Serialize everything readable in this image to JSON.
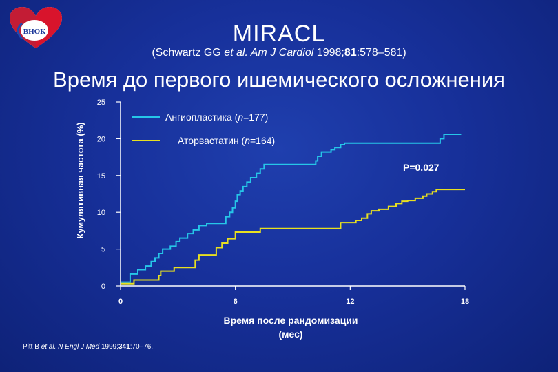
{
  "header": {
    "logo_text": "ВНОК",
    "title": "MIRACL",
    "citation": {
      "author": "(Schwartz GG ",
      "etal": "et al.",
      "journal": " Am J Cardiol",
      "year": " 1998;",
      "volume": "81",
      "pages": ":578–581)"
    },
    "subtitle": "Время до первого ишемического осложнения"
  },
  "footnote": {
    "author": "Pitt B ",
    "etal": "et al.",
    "journal": " N Engl J Med",
    "year": " 1999;",
    "volume": "341",
    "pages": ":70–76."
  },
  "colors": {
    "series_angioplasty": "#26c6e8",
    "series_atorvastatin": "#e8e020",
    "axis": "#ffffff"
  },
  "chart_data": {
    "type": "line",
    "step": true,
    "xlabel": "Время после рандомизации (мес)",
    "ylabel": "Кумулятивная частота (%)",
    "xlim": [
      0,
      18
    ],
    "ylim": [
      0,
      25
    ],
    "xticks": [
      0,
      6,
      12,
      18
    ],
    "yticks": [
      0,
      5,
      10,
      15,
      20,
      25
    ],
    "annotation": "P=0.027",
    "legend": "top-left",
    "series": [
      {
        "name": "Ангиопластика (n=177)",
        "name_parts": [
          "Ангиопластика (",
          "n",
          "=177)"
        ],
        "color": "#26c6e8",
        "x": [
          0,
          0.5,
          0.9,
          1.3,
          1.6,
          1.8,
          2.0,
          2.2,
          2.6,
          2.9,
          3.1,
          3.5,
          3.8,
          4.1,
          4.5,
          5.5,
          5.7,
          5.85,
          6.0,
          6.1,
          6.25,
          6.4,
          6.6,
          6.8,
          7.1,
          7.3,
          7.5,
          10.2,
          10.3,
          10.5,
          11.0,
          11.2,
          11.5,
          11.6,
          11.7,
          11.8,
          12.3,
          14.3,
          16.7,
          16.9,
          17.1,
          17.8
        ],
        "y": [
          0.5,
          1.6,
          2.2,
          2.7,
          3.3,
          3.8,
          4.4,
          5.0,
          5.4,
          6.0,
          6.5,
          7.1,
          7.6,
          8.2,
          8.5,
          9.4,
          10.0,
          10.6,
          11.5,
          12.4,
          12.9,
          13.5,
          14.1,
          14.7,
          15.3,
          15.9,
          16.5,
          17.0,
          17.6,
          18.2,
          18.5,
          18.8,
          19.2,
          19.2,
          19.4,
          19.4,
          19.4,
          19.4,
          20.0,
          20.6,
          20.6,
          20.6
        ]
      },
      {
        "name": "Аторвастатин (n=164)",
        "name_parts": [
          "Аторвастатин (",
          "n",
          "=164)"
        ],
        "color": "#e8e020",
        "x": [
          0,
          0.7,
          2.0,
          2.1,
          2.8,
          3.9,
          4.1,
          5.0,
          5.3,
          5.6,
          6.0,
          7.0,
          7.3,
          11.5,
          12.3,
          12.6,
          12.9,
          13.1,
          13.5,
          14.0,
          14.4,
          14.7,
          15.0,
          15.4,
          15.8,
          16.0,
          16.3,
          16.5,
          18.0
        ],
        "y": [
          0.3,
          0.8,
          1.4,
          2.0,
          2.5,
          3.5,
          4.2,
          5.2,
          5.8,
          6.4,
          7.3,
          7.3,
          7.8,
          8.6,
          8.9,
          9.2,
          9.8,
          10.2,
          10.4,
          10.8,
          11.2,
          11.5,
          11.6,
          11.9,
          12.2,
          12.5,
          12.8,
          13.1,
          13.1
        ]
      }
    ]
  }
}
